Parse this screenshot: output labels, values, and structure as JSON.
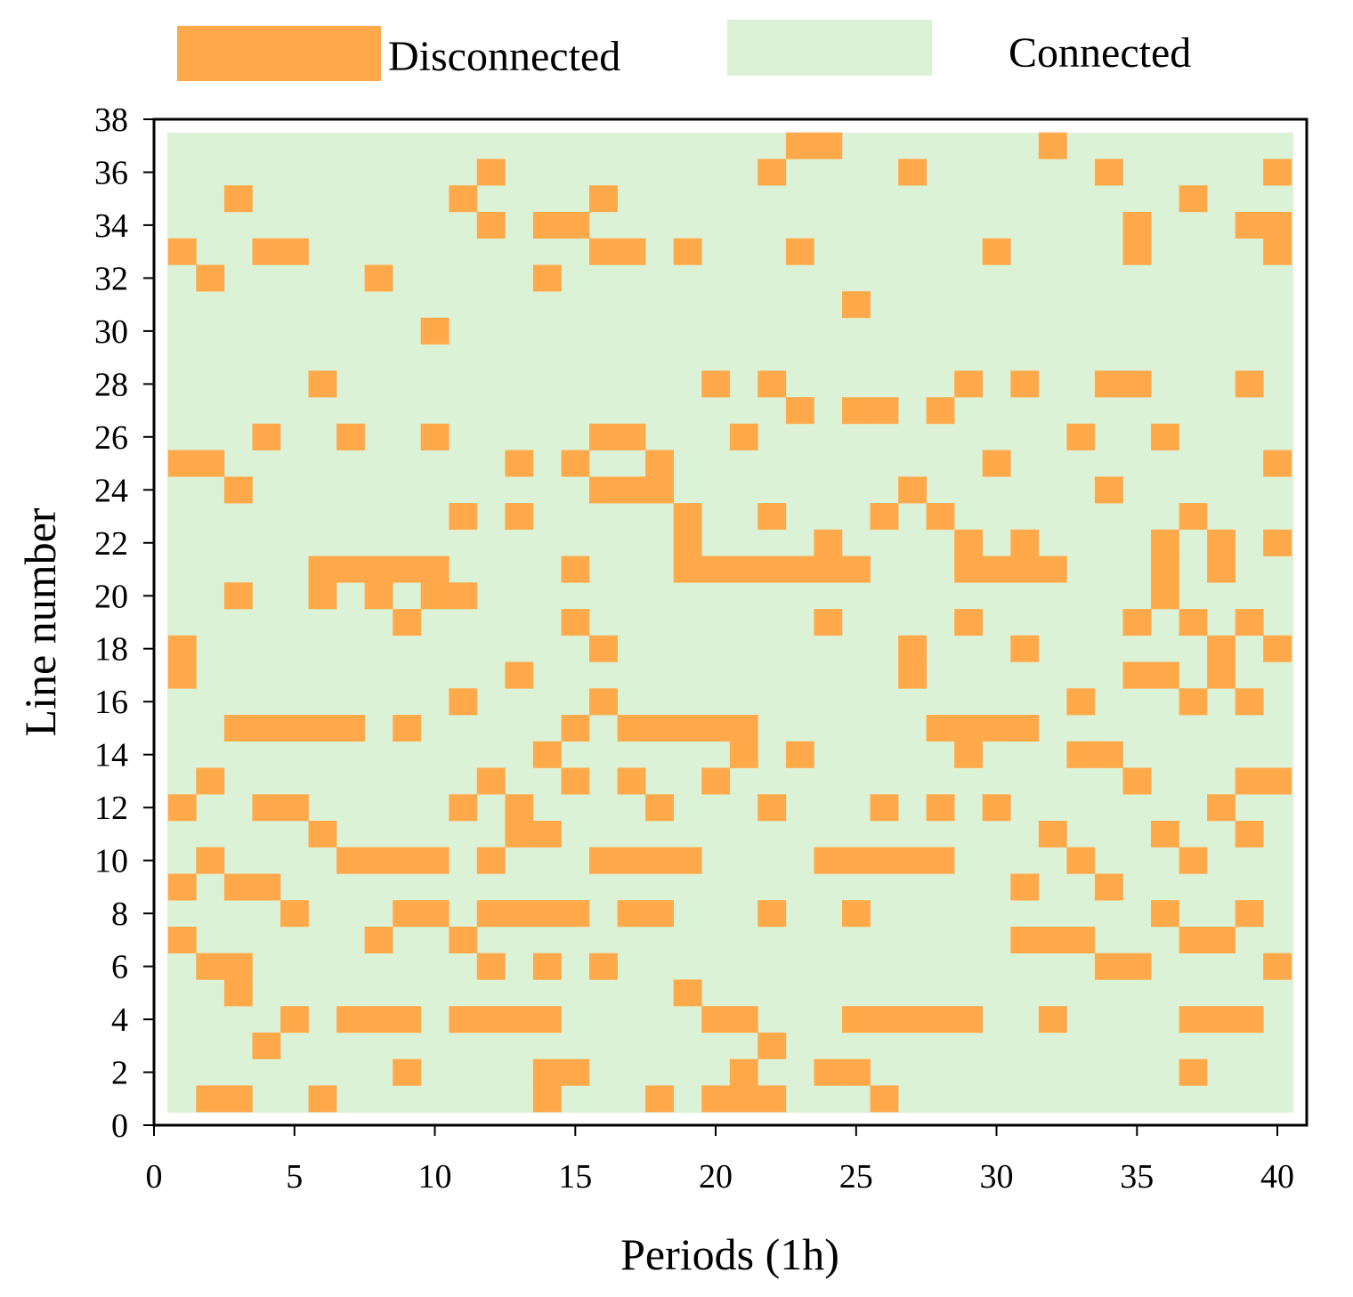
{
  "chart_data": {
    "type": "heatmap",
    "title": "",
    "xlabel": "Periods (1h)",
    "ylabel": "Line number",
    "xlim": [
      0,
      40.5
    ],
    "ylim": [
      0,
      38
    ],
    "x_ticks": [
      "0",
      "5",
      "10",
      "15",
      "20",
      "25",
      "30",
      "35",
      "40"
    ],
    "y_ticks": [
      "0",
      "2",
      "4",
      "6",
      "8",
      "10",
      "12",
      "14",
      "16",
      "18",
      "20",
      "22",
      "24",
      "26",
      "28",
      "30",
      "32",
      "34",
      "36",
      "38"
    ],
    "periods": 40,
    "lines": 37,
    "legend": [
      {
        "label": "Disconnected",
        "color": "#ffa94a"
      },
      {
        "label": "Connected",
        "color": "#dcf2d6"
      }
    ],
    "states": [
      "Connected",
      "Disconnected"
    ],
    "disconnected_cells": {
      "1": [
        2,
        3,
        6,
        14,
        18,
        20,
        21,
        22,
        26
      ],
      "2": [
        9,
        14,
        15,
        21,
        24,
        25,
        37
      ],
      "3": [
        4,
        22
      ],
      "4": [
        5,
        7,
        8,
        9,
        11,
        12,
        13,
        14,
        20,
        21,
        25,
        26,
        27,
        28,
        29,
        32,
        37,
        38,
        39
      ],
      "5": [
        3,
        19
      ],
      "6": [
        2,
        3,
        12,
        14,
        16,
        34,
        35,
        40
      ],
      "7": [
        1,
        8,
        11,
        31,
        32,
        33,
        37,
        38
      ],
      "8": [
        5,
        9,
        10,
        12,
        13,
        14,
        15,
        17,
        18,
        22,
        25,
        36,
        39
      ],
      "9": [
        1,
        3,
        4,
        31,
        34
      ],
      "10": [
        2,
        7,
        8,
        9,
        10,
        12,
        16,
        17,
        18,
        19,
        24,
        25,
        26,
        27,
        28,
        33,
        37
      ],
      "11": [
        6,
        13,
        14,
        32,
        36,
        39
      ],
      "12": [
        1,
        4,
        5,
        11,
        13,
        18,
        22,
        26,
        28,
        30,
        38
      ],
      "13": [
        2,
        12,
        15,
        17,
        20,
        35,
        39,
        40
      ],
      "14": [
        14,
        21,
        23,
        29,
        33,
        34
      ],
      "15": [
        3,
        4,
        5,
        6,
        7,
        9,
        15,
        17,
        18,
        19,
        20,
        21,
        28,
        29,
        30,
        31
      ],
      "16": [
        11,
        16,
        33,
        37,
        39
      ],
      "17": [
        1,
        13,
        27,
        35,
        36,
        38
      ],
      "18": [
        1,
        16,
        27,
        31,
        38,
        40
      ],
      "19": [
        9,
        15,
        24,
        29,
        35,
        37,
        39
      ],
      "20": [
        3,
        6,
        8,
        10,
        11,
        36
      ],
      "21": [
        6,
        7,
        8,
        9,
        10,
        15,
        19,
        20,
        21,
        22,
        23,
        24,
        25,
        29,
        30,
        31,
        32,
        36,
        38
      ],
      "22": [
        19,
        24,
        29,
        31,
        36,
        38,
        40
      ],
      "23": [
        11,
        13,
        19,
        22,
        26,
        28,
        37
      ],
      "24": [
        3,
        16,
        17,
        18,
        27,
        34
      ],
      "25": [
        1,
        2,
        13,
        15,
        18,
        30,
        40
      ],
      "26": [
        4,
        7,
        10,
        16,
        17,
        21,
        33,
        36
      ],
      "27": [
        23,
        25,
        26,
        28
      ],
      "28": [
        6,
        20,
        22,
        29,
        31,
        34,
        35,
        39
      ],
      "30": [
        10
      ],
      "31": [
        25
      ],
      "32": [
        2,
        8,
        14
      ],
      "33": [
        1,
        4,
        5,
        16,
        17,
        19,
        23,
        30,
        35,
        40
      ],
      "34": [
        12,
        14,
        15,
        35,
        39,
        40
      ],
      "35": [
        3,
        11,
        16,
        37
      ],
      "36": [
        12,
        22,
        27,
        34,
        40
      ],
      "37": [
        23,
        24,
        32
      ]
    }
  }
}
